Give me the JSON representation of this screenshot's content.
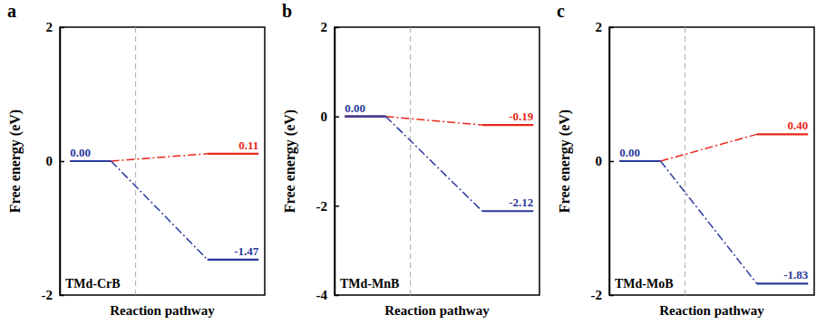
{
  "chart_data": [
    {
      "type": "energy_diagram",
      "panel": "a",
      "annotation": "TMd-CrB",
      "x_label": "Reaction pathway",
      "y_label": "Free energy (eV)",
      "ylim": [
        -2,
        2
      ],
      "yticks": [
        -2,
        0,
        2
      ],
      "tick_labels": "y",
      "data_labels": true,
      "line_style": "dashdot",
      "series": [
        {
          "color": "#2b3a9e",
          "values": [
            0,
            -1.47
          ],
          "value_labels": [
            "0.00",
            "-1.47"
          ]
        },
        {
          "color": "#e8261b",
          "values": [
            0,
            0.11
          ],
          "value_labels": [
            null,
            "0.11"
          ]
        }
      ]
    },
    {
      "type": "energy_diagram",
      "panel": "b",
      "annotation": "TMd-MnB",
      "x_label": "Reaction pathway",
      "y_label": "Free energy (eV)",
      "ylim": [
        -4,
        2
      ],
      "yticks": [
        -4,
        -2,
        0,
        2
      ],
      "tick_labels": "y",
      "data_labels": true,
      "line_style": "dashdot",
      "series": [
        {
          "color": "#2b3a9e",
          "values": [
            0,
            -2.12
          ],
          "value_labels": [
            "0.00",
            "-2.12"
          ]
        },
        {
          "color": "#e8261b",
          "values": [
            0,
            -0.19
          ],
          "value_labels": [
            null,
            "-0.19"
          ]
        }
      ]
    },
    {
      "type": "energy_diagram",
      "panel": "c",
      "annotation": "TMd-MoB",
      "x_label": "Reaction pathway",
      "y_label": "Free energy (eV)",
      "ylim": [
        -2,
        2
      ],
      "yticks": [
        -2,
        0,
        2
      ],
      "tick_labels": "y",
      "data_labels": true,
      "line_style": "dashdot",
      "series": [
        {
          "color": "#2b3a9e",
          "values": [
            0,
            -1.83
          ],
          "value_labels": [
            "0.00",
            "-1.83"
          ]
        },
        {
          "color": "#e8261b",
          "values": [
            0,
            0.4
          ],
          "value_labels": [
            null,
            "0.40"
          ]
        }
      ]
    }
  ]
}
